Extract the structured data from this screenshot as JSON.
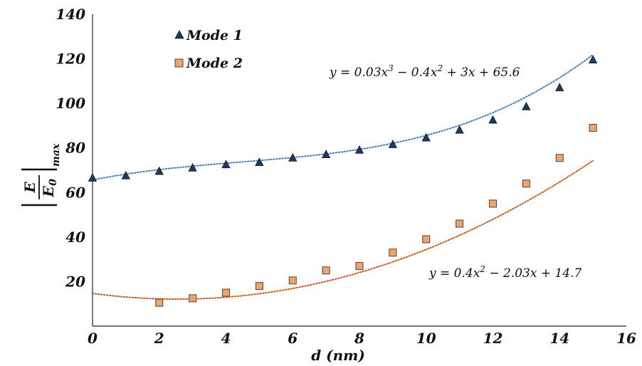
{
  "chart_data": {
    "type": "scatter",
    "xlabel": "d (nm)",
    "ylabel": {
      "numerator": "E",
      "denominator": "E",
      "denominator_sub": "0",
      "subscript": "max"
    },
    "xlim": [
      0,
      16
    ],
    "ylim": [
      0,
      140
    ],
    "xticks": [
      "0",
      "2",
      "4",
      "6",
      "8",
      "10",
      "12",
      "14",
      "16"
    ],
    "yticks": [
      "20",
      "40",
      "60",
      "80",
      "100",
      "120",
      "140"
    ],
    "grid": false,
    "legend_position": "top-left",
    "series": [
      {
        "name": "Mode 1",
        "marker": "triangle",
        "color": "#1f3a5f",
        "trend_color": "#4a7fb5",
        "x": [
          0,
          1,
          2,
          3,
          4,
          5,
          6,
          7,
          8,
          9,
          10,
          11,
          12,
          13,
          14,
          15
        ],
        "y": [
          66.5,
          67.5,
          69.5,
          71,
          72.5,
          73.5,
          75.5,
          77,
          79,
          81.5,
          84.5,
          88,
          92.5,
          98.5,
          107,
          119.5
        ],
        "trendline": {
          "type": "poly3",
          "coefficients": [
            65.6,
            3,
            -0.4,
            0.03
          ],
          "equation": "y = 0.03x³ − 0.4x² + 3x + 65.6"
        }
      },
      {
        "name": "Mode 2",
        "marker": "square",
        "color": "#f0a469",
        "trend_color": "#c85a1e",
        "x": [
          2,
          3,
          4,
          5,
          6,
          7,
          8,
          9,
          10,
          11,
          12,
          13,
          14,
          15
        ],
        "y": [
          10.5,
          12.5,
          15,
          18,
          20.5,
          25,
          27,
          33,
          39,
          46,
          55,
          64,
          75.5,
          89
        ],
        "trendline": {
          "type": "poly2",
          "coefficients": [
            14.7,
            -2.03,
            0.4
          ],
          "equation": "y = 0.4x² − 2.03x + 14.7"
        }
      }
    ],
    "annotations": [
      {
        "parts": [
          [
            "y = 0.03x",
            ""
          ],
          [
            "3",
            "sup"
          ],
          [
            " − 0.4x",
            ""
          ],
          [
            "2",
            "sup"
          ],
          [
            " + 3x + 65.6",
            ""
          ]
        ]
      },
      {
        "parts": [
          [
            "y = 0.4x",
            ""
          ],
          [
            "2",
            "sup"
          ],
          [
            " − 2.03x + 14.7",
            ""
          ]
        ]
      }
    ]
  }
}
